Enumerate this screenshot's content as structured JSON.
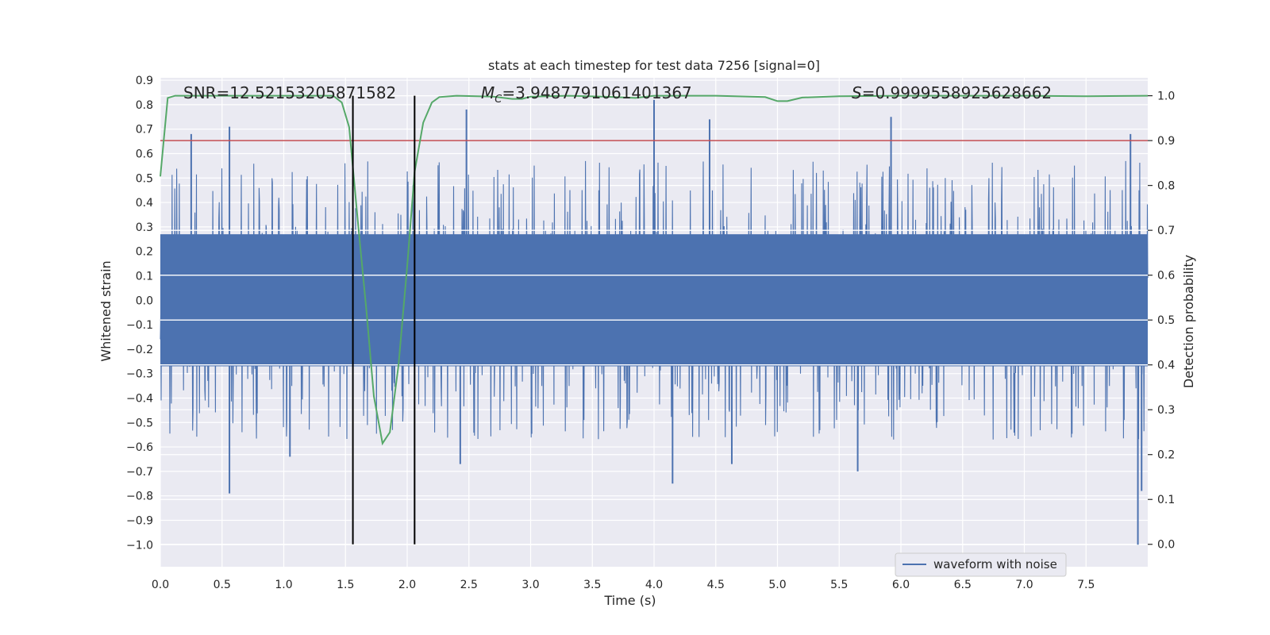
{
  "chart_data": {
    "type": "line",
    "title": "stats at each timestep for test data 7256 [signal=0]",
    "xlabel": "Time (s)",
    "ylabel_left": "Whitened strain",
    "ylabel_right": "Detection probability",
    "xlim": [
      0.0,
      8.0
    ],
    "ylim_left": [
      -1.09,
      0.91
    ],
    "ylim_right": [
      -0.05,
      1.04
    ],
    "xticks": [
      "0.0",
      "0.5",
      "1.0",
      "1.5",
      "2.0",
      "2.5",
      "3.0",
      "3.5",
      "4.0",
      "4.5",
      "5.0",
      "5.5",
      "6.0",
      "6.5",
      "7.0",
      "7.5"
    ],
    "xtick_values": [
      0.0,
      0.5,
      1.0,
      1.5,
      2.0,
      2.5,
      3.0,
      3.5,
      4.0,
      4.5,
      5.0,
      5.5,
      6.0,
      6.5,
      7.0,
      7.5
    ],
    "yticks_left": [
      "0.9",
      "0.8",
      "0.7",
      "0.6",
      "0.5",
      "0.4",
      "0.3",
      "0.2",
      "0.1",
      "0.0",
      "−0.1",
      "−0.2",
      "−0.3",
      "−0.4",
      "−0.5",
      "−0.6",
      "−0.7",
      "−0.8",
      "−0.9",
      "−1.0"
    ],
    "ytick_values_left": [
      0.9,
      0.8,
      0.7,
      0.6,
      0.5,
      0.4,
      0.3,
      0.2,
      0.1,
      0.0,
      -0.1,
      -0.2,
      -0.3,
      -0.4,
      -0.5,
      -0.6,
      -0.7,
      -0.8,
      -0.9,
      -1.0
    ],
    "yticks_right": [
      "1.0",
      "0.9",
      "0.8",
      "0.7",
      "0.6",
      "0.5",
      "0.4",
      "0.3",
      "0.2",
      "0.1",
      "0.0"
    ],
    "ytick_values_right": [
      1.0,
      0.9,
      0.8,
      0.7,
      0.6,
      0.5,
      0.4,
      0.3,
      0.2,
      0.1,
      0.0
    ],
    "annotations": {
      "snr": "SNR=12.52153205871582",
      "mc_symbol": "M",
      "mc_sub": "C",
      "mc_value": "=3.9487791061401367",
      "s_symbol": "S",
      "s_value": "=0.9999558925628662"
    },
    "legend": {
      "label": "waveform with noise",
      "loc": "lower-right"
    },
    "colors": {
      "waveform": "#4c72b0",
      "probability": "#55a868",
      "threshold": "#c44e52",
      "markers": "#000000",
      "background": "#eaeaf2",
      "grid": "#ffffff",
      "text": "#262626"
    },
    "threshold_probability": 0.9,
    "vertical_markers_s": [
      1.56,
      2.06
    ],
    "waveform": {
      "duration_s": 8.0,
      "typical_amplitude": 0.27,
      "peak_points": [
        {
          "t": 0.56,
          "v": -0.79
        },
        {
          "t": 0.56,
          "v": 0.71
        },
        {
          "t": 0.25,
          "v": 0.68
        },
        {
          "t": 2.48,
          "v": 0.78
        },
        {
          "t": 4.0,
          "v": 0.82
        },
        {
          "t": 4.15,
          "v": -0.75
        },
        {
          "t": 4.45,
          "v": 0.74
        },
        {
          "t": 5.92,
          "v": 0.75
        },
        {
          "t": 7.92,
          "v": -1.0
        },
        {
          "t": 7.86,
          "v": 0.68
        },
        {
          "t": 5.65,
          "v": -0.7
        },
        {
          "t": 2.43,
          "v": -0.67
        },
        {
          "t": 4.63,
          "v": -0.67
        },
        {
          "t": 1.05,
          "v": -0.64
        },
        {
          "t": 7.95,
          "v": -0.78
        }
      ]
    },
    "probability": {
      "t": [
        0.0,
        0.06,
        0.12,
        0.3,
        0.6,
        1.0,
        1.4,
        1.47,
        1.53,
        1.6,
        1.67,
        1.73,
        1.8,
        1.86,
        1.93,
        2.0,
        2.06,
        2.13,
        2.2,
        2.26,
        2.4,
        2.7,
        2.85,
        2.93,
        3.0,
        3.3,
        3.6,
        3.85,
        4.0,
        4.5,
        4.9,
        5.0,
        5.08,
        5.2,
        5.5,
        6.0,
        6.5,
        7.0,
        7.5,
        8.0
      ],
      "p": [
        0.82,
        0.995,
        1.0,
        1.0,
        1.0,
        1.0,
        1.0,
        0.985,
        0.93,
        0.72,
        0.52,
        0.33,
        0.225,
        0.25,
        0.4,
        0.62,
        0.83,
        0.94,
        0.985,
        0.997,
        1.0,
        0.998,
        0.993,
        0.993,
        0.998,
        1.0,
        0.998,
        0.995,
        1.0,
        1.0,
        0.997,
        0.988,
        0.988,
        0.996,
        0.999,
        1.0,
        1.0,
        1.0,
        0.999,
        1.0
      ]
    }
  }
}
